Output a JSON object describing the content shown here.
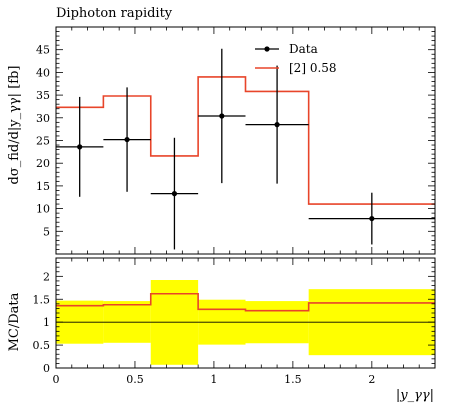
{
  "chart_data": [
    {
      "type": "line",
      "title": "Diphoton rapidity",
      "ylabel": "dσ_fid/d|y_γγ| [fb]",
      "ylim": [
        0,
        50
      ],
      "xlim": [
        0,
        2.4
      ],
      "yticks": [
        "5",
        "10",
        "15",
        "20",
        "25",
        "30",
        "35",
        "40",
        "45"
      ],
      "grid": false,
      "legend_position": "top-right",
      "legend": [
        {
          "label": "Data",
          "style": "points"
        },
        {
          "label": "[2] 0.58",
          "style": "line",
          "color": "#e8452a"
        }
      ],
      "series": [
        {
          "name": "Data",
          "type": "points-with-errors",
          "color": "#000000",
          "points": [
            {
              "x": 0.15,
              "x_err": 0.15,
              "y": 23.6,
              "y_err_low": 11.0,
              "y_err_high": 11.0
            },
            {
              "x": 0.45,
              "x_err": 0.15,
              "y": 25.2,
              "y_err_low": 11.5,
              "y_err_high": 11.5
            },
            {
              "x": 0.75,
              "x_err": 0.15,
              "y": 13.3,
              "y_err_low": 12.3,
              "y_err_high": 12.3
            },
            {
              "x": 1.05,
              "x_err": 0.15,
              "y": 30.4,
              "y_err_low": 14.8,
              "y_err_high": 14.8
            },
            {
              "x": 1.4,
              "x_err": 0.2,
              "y": 28.5,
              "y_err_low": 13.0,
              "y_err_high": 13.0
            },
            {
              "x": 2.0,
              "x_err": 0.4,
              "y": 7.8,
              "y_err_low": 5.7,
              "y_err_high": 5.7
            }
          ]
        },
        {
          "name": "[2] 0.58",
          "type": "step",
          "color": "#e8452a",
          "bins": [
            {
              "x_low": 0.0,
              "x_high": 0.3,
              "y": 32.3
            },
            {
              "x_low": 0.3,
              "x_high": 0.6,
              "y": 34.8
            },
            {
              "x_low": 0.6,
              "x_high": 0.9,
              "y": 21.6
            },
            {
              "x_low": 0.9,
              "x_high": 1.2,
              "y": 39.0
            },
            {
              "x_low": 1.2,
              "x_high": 1.6,
              "y": 35.8
            },
            {
              "x_low": 1.6,
              "x_high": 2.4,
              "y": 11.0
            }
          ]
        }
      ]
    },
    {
      "type": "line",
      "ylabel": "MC/Data",
      "xlabel": "|y_γγ|",
      "ylim": [
        0,
        2.4
      ],
      "xlim": [
        0,
        2.4
      ],
      "yticks": [
        "0",
        "0.5",
        "1",
        "1.5",
        "2"
      ],
      "xticks": [
        "0",
        "0.5",
        "1",
        "1.5",
        "2"
      ],
      "grid": false,
      "reference_line": 1,
      "series": [
        {
          "name": "Data uncertainty band",
          "type": "band",
          "color": "#ffff00",
          "bins": [
            {
              "x_low": 0.0,
              "x_high": 0.3,
              "low": 0.53,
              "high": 1.47
            },
            {
              "x_low": 0.3,
              "x_high": 0.6,
              "low": 0.55,
              "high": 1.46
            },
            {
              "x_low": 0.6,
              "x_high": 0.9,
              "low": 0.07,
              "high": 1.92
            },
            {
              "x_low": 0.9,
              "x_high": 1.2,
              "low": 0.51,
              "high": 1.49
            },
            {
              "x_low": 1.2,
              "x_high": 1.6,
              "low": 0.54,
              "high": 1.46
            },
            {
              "x_low": 1.6,
              "x_high": 2.4,
              "low": 0.28,
              "high": 1.72
            }
          ]
        },
        {
          "name": "[2] 0.58",
          "type": "step",
          "color": "#e8452a",
          "bins": [
            {
              "x_low": 0.0,
              "x_high": 0.3,
              "y": 1.36
            },
            {
              "x_low": 0.3,
              "x_high": 0.6,
              "y": 1.38
            },
            {
              "x_low": 0.6,
              "x_high": 0.9,
              "y": 1.62
            },
            {
              "x_low": 0.9,
              "x_high": 1.2,
              "y": 1.28
            },
            {
              "x_low": 1.2,
              "x_high": 1.6,
              "y": 1.25
            },
            {
              "x_low": 1.6,
              "x_high": 2.4,
              "y": 1.42
            }
          ]
        }
      ]
    }
  ]
}
